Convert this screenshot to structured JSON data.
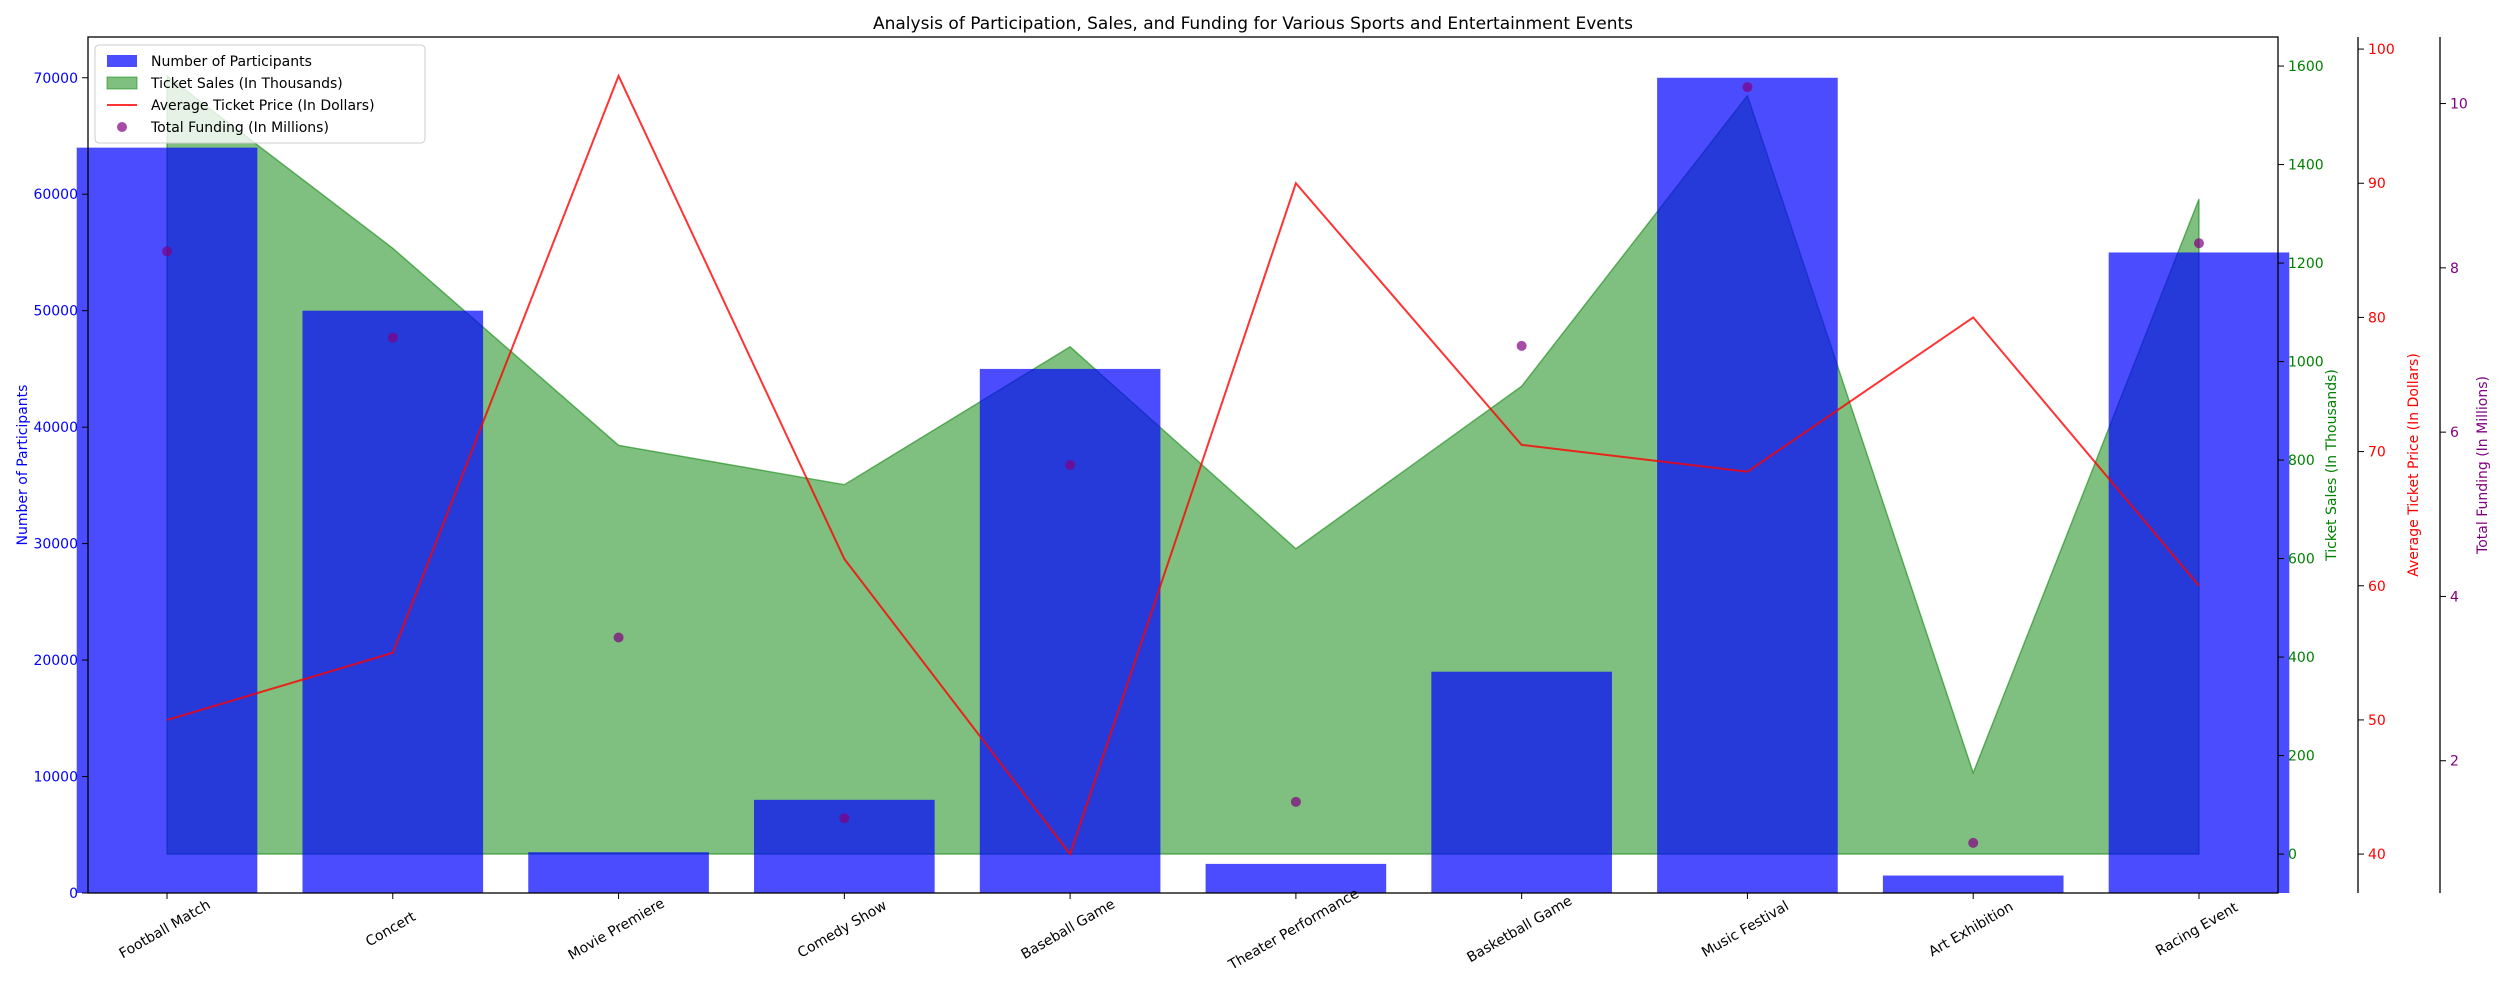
{
  "chart_data": {
    "type": "bar",
    "title": "Analysis of Participation, Sales, and Funding for Various Sports and Entertainment Events",
    "categories": [
      "Football Match",
      "Concert",
      "Movie Premiere",
      "Comedy Show",
      "Baseball Game",
      "Theater Performance",
      "Basketball Game",
      "Music Festival",
      "Art Exhibition",
      "Racing Event"
    ],
    "series": [
      {
        "name": "Number of Participants",
        "kind": "bar",
        "axis": "participants",
        "color": "#0000ff",
        "values": [
          64000,
          50000,
          3500,
          8000,
          45000,
          2500,
          19000,
          70000,
          1500,
          55000
        ]
      },
      {
        "name": "Ticket Sales (In Thousands)",
        "kind": "area",
        "axis": "sales",
        "color": "#008000",
        "values": [
          1580,
          1230,
          830,
          750,
          1030,
          620,
          950,
          1540,
          165,
          1330
        ]
      },
      {
        "name": "Average Ticket Price (In Dollars)",
        "kind": "line",
        "axis": "price",
        "color": "#ff0000",
        "values": [
          50,
          55,
          98,
          62,
          40,
          90,
          70.5,
          68.5,
          80,
          60
        ]
      },
      {
        "name": "Total Funding (In Millions)",
        "kind": "scatter",
        "axis": "funding",
        "color": "#800080",
        "values": [
          8.2,
          7.15,
          3.5,
          1.3,
          5.6,
          1.5,
          7.05,
          10.2,
          1.0,
          8.3
        ]
      }
    ],
    "axes": {
      "participants": {
        "label": "Number of Participants",
        "color": "#0000ff",
        "range": [
          0,
          73500
        ],
        "ticks": [
          0,
          10000,
          20000,
          30000,
          40000,
          50000,
          60000,
          70000
        ],
        "side": "left"
      },
      "sales": {
        "label": "Ticket Sales (In Thousands)",
        "color": "#008000",
        "range": [
          -79,
          1659
        ],
        "ticks": [
          0,
          200,
          400,
          600,
          800,
          1000,
          1200,
          1400,
          1600
        ],
        "side": "right"
      },
      "price": {
        "label": "Average Ticket Price (In Dollars)",
        "color": "#ff0000",
        "range": [
          37.1,
          100.9
        ],
        "ticks": [
          40,
          50,
          60,
          70,
          80,
          90,
          100
        ],
        "side": "right"
      },
      "funding": {
        "label": "Total Funding (In Millions)",
        "color": "#800080",
        "range": [
          0.39,
          10.81
        ],
        "ticks": [
          2,
          4,
          6,
          8,
          10
        ],
        "side": "right"
      }
    },
    "legend": {
      "position": "top-left"
    },
    "grid": false
  }
}
